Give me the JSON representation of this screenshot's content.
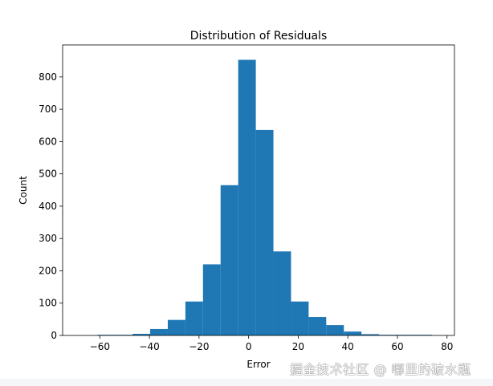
{
  "chart_data": {
    "type": "bar",
    "subtype": "histogram",
    "title": "Distribution of Residuals",
    "xlabel": "Error",
    "ylabel": "Count",
    "xlim": [
      -75,
      83
    ],
    "ylim": [
      0,
      899
    ],
    "xticks": [
      -60,
      -40,
      -20,
      0,
      20,
      40,
      60,
      80
    ],
    "xtick_labels": [
      "−60",
      "−40",
      "−20",
      "0",
      "20",
      "40",
      "60",
      "80"
    ],
    "yticks": [
      0,
      100,
      200,
      300,
      400,
      500,
      600,
      700,
      800
    ],
    "ytick_labels": [
      "0",
      "100",
      "200",
      "300",
      "400",
      "500",
      "600",
      "700",
      "800"
    ],
    "bin_edges": [
      -61,
      -53.9,
      -46.8,
      -39.7,
      -32.6,
      -25.5,
      -18.4,
      -11.3,
      -4.2,
      2.9,
      10.0,
      17.1,
      24.2,
      31.3,
      38.4,
      45.5,
      52.6,
      59.7,
      66.8,
      74
    ],
    "values": [
      2,
      2,
      5,
      20,
      48,
      105,
      220,
      465,
      853,
      636,
      260,
      105,
      57,
      32,
      12,
      4,
      2,
      2,
      2
    ],
    "color": "#1f77b4",
    "grid": false
  },
  "watermark": "掘金技术社区 @ 哪里的破水瓶"
}
